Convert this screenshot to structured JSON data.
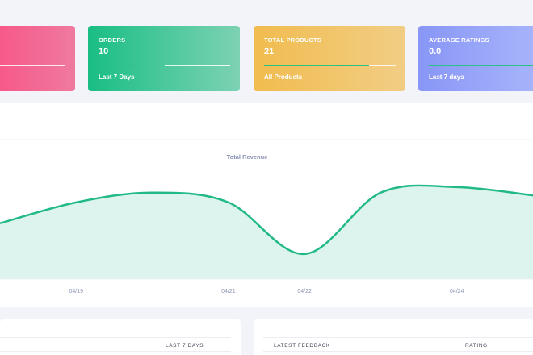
{
  "stats": [
    {
      "title": "",
      "value": "",
      "footer": "",
      "progress": 1.0
    },
    {
      "title": "ORDERS",
      "value": "10",
      "footer": "Last 7 Days",
      "progress": 0.0
    },
    {
      "title": "TOTAL PRODUCTS",
      "value": "21",
      "footer": "All Products",
      "progress": 0.8
    },
    {
      "title": "AVERAGE RATINGS",
      "value": "0.0",
      "footer": "Last 7 days",
      "progress": 1.0
    }
  ],
  "chart_data": {
    "type": "area",
    "title": "Total Revenue",
    "categories": [
      "04/19",
      "04/21",
      "04/22",
      "04/24"
    ],
    "series": [
      {
        "x": [
          "04/18",
          "04/19",
          "04/20",
          "04/21",
          "04/22",
          "04/23",
          "04/24",
          "04/25"
        ],
        "values": [
          40,
          55,
          62,
          55,
          18,
          62,
          66,
          60
        ]
      }
    ],
    "ylim": [
      0,
      100
    ],
    "colors": {
      "line": "#21ba87",
      "fill": "#dcf4ed",
      "tick": "#8a93b5"
    }
  },
  "bottom": {
    "left": {
      "headers": [
        "",
        "LAST 7 DAYS"
      ]
    },
    "right": {
      "headers": [
        "LATEST FEEDBACK",
        "RATING"
      ]
    }
  }
}
